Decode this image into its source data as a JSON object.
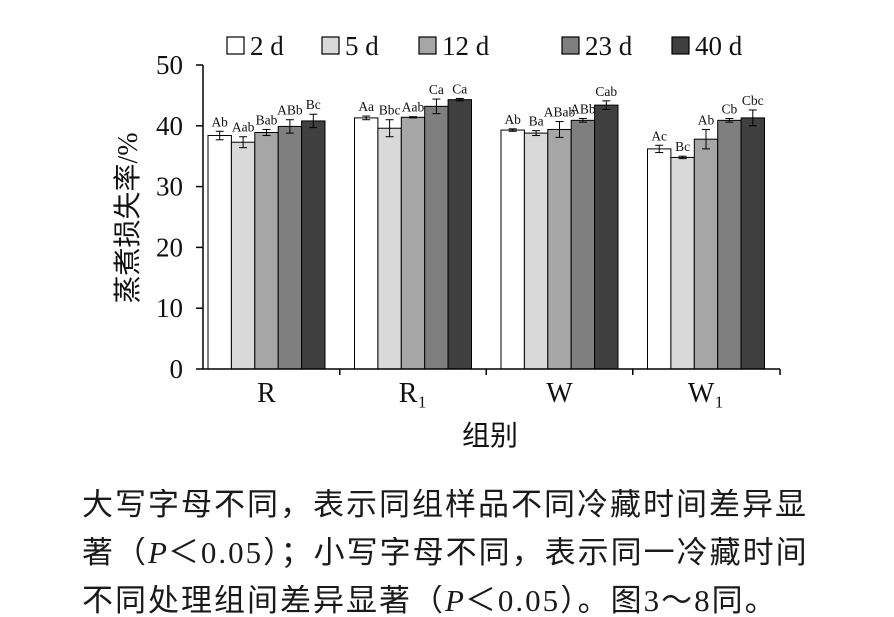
{
  "chart_data": {
    "type": "bar",
    "categories": [
      "R",
      "R₁",
      "W",
      "W₁"
    ],
    "series": [
      {
        "name": "2 d",
        "color": "#ffffff",
        "values": [
          38.4,
          41.3,
          39.3,
          36.2
        ],
        "errors": [
          0.7,
          0.3,
          0.2,
          0.6
        ],
        "letters": [
          "Ab",
          "Aa",
          "Ab",
          "Ac"
        ]
      },
      {
        "name": "5 d",
        "color": "#d9d9d9",
        "values": [
          37.3,
          39.6,
          38.8,
          34.8
        ],
        "errors": [
          0.9,
          1.4,
          0.4,
          0.2
        ],
        "letters": [
          "Aab",
          "Bbc",
          "Ba",
          "Bc"
        ]
      },
      {
        "name": "12 d",
        "color": "#a6a6a6",
        "values": [
          38.9,
          41.4,
          39.4,
          37.8
        ],
        "errors": [
          0.5,
          0.1,
          1.3,
          1.6
        ],
        "letters": [
          "Bab",
          "Aab",
          "ABab",
          "Ab"
        ]
      },
      {
        "name": "23 d",
        "color": "#7f7f7f",
        "values": [
          39.9,
          43.2,
          40.9,
          40.9
        ],
        "errors": [
          1.1,
          1.2,
          0.3,
          0.3
        ],
        "letters": [
          "ABb",
          "Ca",
          "ABb",
          "Cb"
        ]
      },
      {
        "name": "40 d",
        "color": "#404040",
        "values": [
          40.8,
          44.3,
          43.4,
          41.3
        ],
        "errors": [
          1.1,
          0.2,
          0.7,
          1.3
        ],
        "letters": [
          "Bc",
          "Ca",
          "Cab",
          "Cbc"
        ]
      }
    ],
    "xlabel": "组别",
    "ylabel": "蒸煮损失率/%",
    "ylim": [
      0,
      50
    ],
    "yticks": [
      0,
      10,
      20,
      30,
      40,
      50
    ],
    "legend": "top",
    "grid": false,
    "error_bars": true
  },
  "note": {
    "lines": [
      [
        "大写字母不同，表示同组样品不同冷藏时间差异显"
      ],
      [
        "著（",
        "P",
        "＜0.05）；小写字母不同，表示同一冷藏时间"
      ],
      [
        "不同处理组间差异显著（",
        "P",
        "＜0.05）。图3～8同。"
      ]
    ]
  }
}
